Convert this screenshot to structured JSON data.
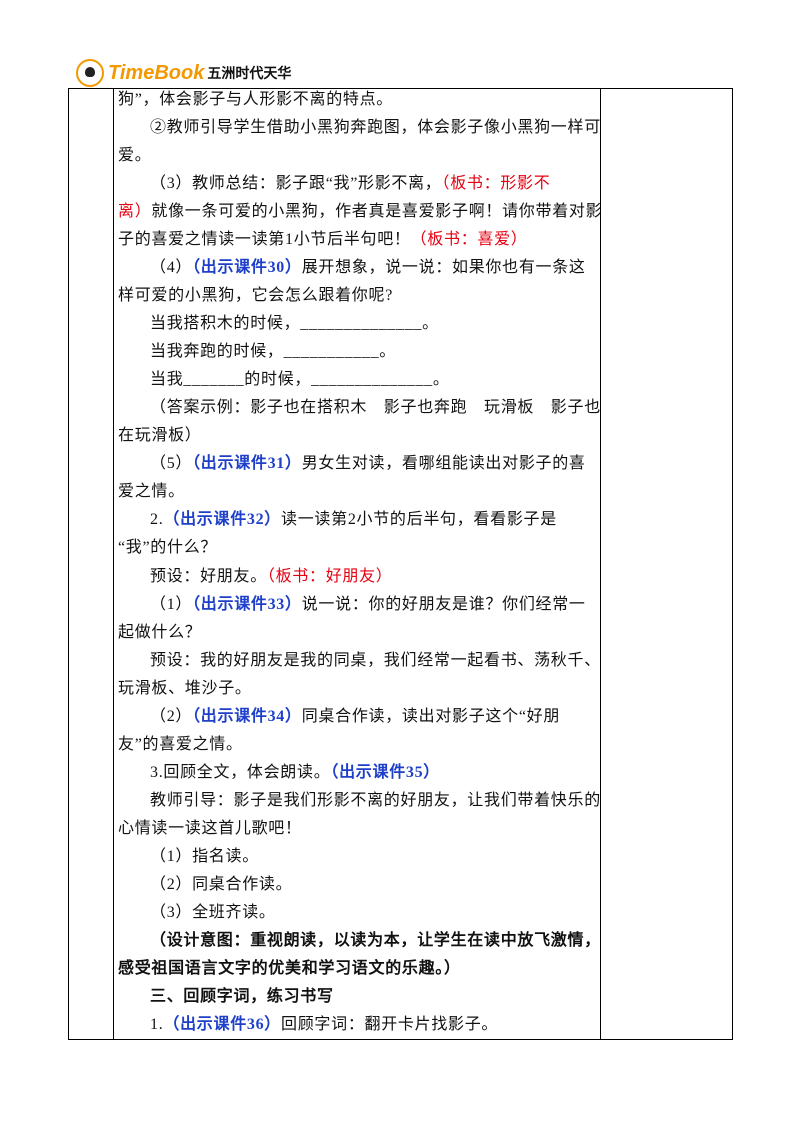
{
  "header": {
    "brand": "TimeBook",
    "publisher": "五洲时代天华"
  },
  "paragraphs": [
    {
      "continued": true,
      "lines": [
        [
          "狗”，体会影子与人形影不离的特点。"
        ]
      ]
    },
    {
      "lines": [
        [
          "②教师引导学生借助小黑狗奔跑图，体会影子像小黑狗一样可"
        ],
        [
          "爱。"
        ]
      ]
    },
    {
      "lines": [
        [
          "（3）教师总结：影子跟“我”形影不离，",
          {
            "text": "（板书：形影不",
            "color": "red"
          }
        ],
        [
          {
            "text": "离）",
            "color": "red"
          },
          "就像一条可爱的小黑狗，作者真是喜爱影子啊！请你带着对影"
        ],
        [
          "子的喜爱之情读一读第1小节后半句吧！",
          {
            "text": "（板书：喜爱）",
            "color": "red"
          }
        ]
      ]
    },
    {
      "lines": [
        [
          "（4）",
          {
            "text": "（出示课件30）",
            "color": "blue"
          },
          "展开想象，说一说：如果你也有一条这"
        ],
        [
          "样可爱的小黑狗，它会怎么跟着你呢?"
        ]
      ]
    },
    {
      "lines": [
        [
          "当我搭积木的时候，______________。"
        ]
      ]
    },
    {
      "lines": [
        [
          "当我奔跑的时候，___________。"
        ]
      ]
    },
    {
      "lines": [
        [
          "当我_______的时候，______________。"
        ]
      ]
    },
    {
      "lines": [
        [
          "（答案示例：影子也在搭积木　影子也奔跑　玩滑板　影子也"
        ],
        [
          "在玩滑板）"
        ]
      ]
    },
    {
      "lines": [
        [
          "（5）",
          {
            "text": "（出示课件31）",
            "color": "blue"
          },
          "男女生对读，看哪组能读出对影子的喜"
        ],
        [
          "爱之情。"
        ]
      ]
    },
    {
      "lines": [
        [
          "2.",
          {
            "text": "（出示课件32）",
            "color": "blue"
          },
          "读一读第2小节的后半句，看看影子是"
        ],
        [
          "“我”的什么？"
        ]
      ]
    },
    {
      "lines": [
        [
          "预设：好朋友。",
          {
            "text": "（板书：好朋友）",
            "color": "red"
          }
        ]
      ]
    },
    {
      "lines": [
        [
          "（1）",
          {
            "text": "（出示课件33）",
            "color": "blue"
          },
          "说一说：你的好朋友是谁？你们经常一"
        ],
        [
          "起做什么？"
        ]
      ]
    },
    {
      "lines": [
        [
          "预设：我的好朋友是我的同桌，我们经常一起看书、荡秋千、"
        ],
        [
          "玩滑板、堆沙子。"
        ]
      ]
    },
    {
      "lines": [
        [
          "（2）",
          {
            "text": "（出示课件34）",
            "color": "blue"
          },
          "同桌合作读，读出对影子这个“好朋"
        ],
        [
          "友”的喜爱之情。"
        ]
      ]
    },
    {
      "lines": [
        [
          "3.回顾全文，体会朗读。",
          {
            "text": "（出示课件35）",
            "color": "blue"
          }
        ]
      ]
    },
    {
      "lines": [
        [
          "教师引导：影子是我们形影不离的好朋友，让我们带着快乐的"
        ],
        [
          "心情读一读这首儿歌吧！"
        ]
      ]
    },
    {
      "lines": [
        [
          "（1）指名读。"
        ]
      ]
    },
    {
      "lines": [
        [
          "（2）同桌合作读。"
        ]
      ]
    },
    {
      "lines": [
        [
          "（3）全班齐读。"
        ]
      ]
    },
    {
      "lines": [
        [
          {
            "text": "（设计意图：",
            "bold": true
          },
          {
            "text": "重视朗读，以读为本，让学生在读中放飞激情，",
            "bold": true
          }
        ],
        [
          {
            "text": "感受祖国语言文字的优美和学习语文的乐趣。）",
            "bold": true
          }
        ]
      ]
    },
    {
      "lines": [
        [
          {
            "text": "三、回顾字词，练习书写",
            "bold": true
          }
        ]
      ]
    },
    {
      "lines": [
        [
          "1.",
          {
            "text": "（出示课件36）",
            "color": "blue"
          },
          "回顾字词：翻开卡片找影子。"
        ]
      ]
    }
  ]
}
